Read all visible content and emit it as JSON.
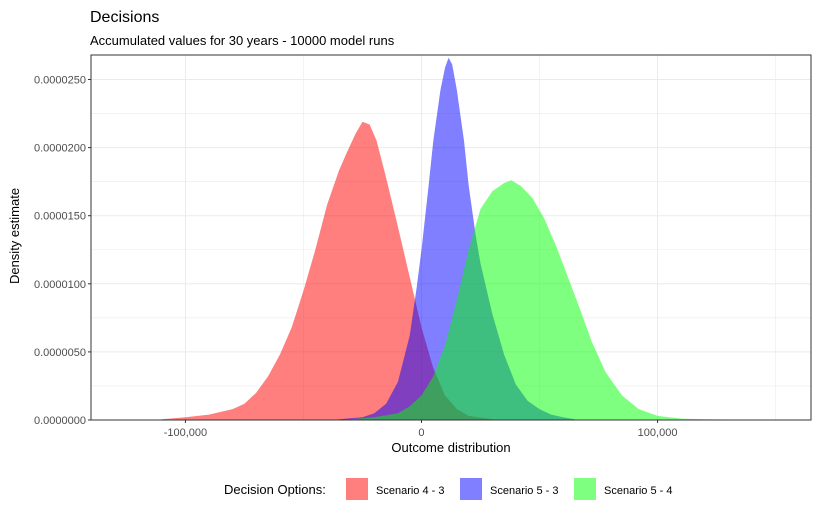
{
  "chart_data": {
    "type": "area",
    "title": "Decisions",
    "subtitle": "Accumulated values for 30 years - 10000 model runs",
    "xlabel": "Outcome distribution",
    "ylabel": "Density estimate",
    "xlim": [
      -140000,
      165000
    ],
    "ylim": [
      0,
      2.68e-05
    ],
    "x_ticks": [
      -100000,
      0,
      100000
    ],
    "x_tick_labels": [
      "-100,000",
      "0",
      "100,000"
    ],
    "y_ticks": [
      0,
      5e-06,
      1e-05,
      1.5e-05,
      2e-05,
      2.5e-05
    ],
    "y_tick_labels": [
      "0.0000000",
      "0.0000050",
      "0.0000100",
      "0.0000150",
      "0.0000200",
      "0.0000250"
    ],
    "grid": true,
    "legend": {
      "title": "Decision Options:",
      "position": "bottom"
    },
    "series": [
      {
        "name": "Scenario 4 - 3",
        "color": "#FF0000",
        "points": [
          [
            -110000,
            5e-08
          ],
          [
            -100000,
            2e-07
          ],
          [
            -90000,
            4e-07
          ],
          [
            -80000,
            8e-07
          ],
          [
            -75000,
            1.2e-06
          ],
          [
            -70000,
            2e-06
          ],
          [
            -65000,
            3.2e-06
          ],
          [
            -60000,
            4.8e-06
          ],
          [
            -55000,
            6.8e-06
          ],
          [
            -50000,
            9.5e-06
          ],
          [
            -45000,
            1.25e-05
          ],
          [
            -40000,
            1.58e-05
          ],
          [
            -35000,
            1.83e-05
          ],
          [
            -32000,
            1.95e-05
          ],
          [
            -28000,
            2.1e-05
          ],
          [
            -25000,
            2.19e-05
          ],
          [
            -22000,
            2.17e-05
          ],
          [
            -19000,
            2.05e-05
          ],
          [
            -15000,
            1.78e-05
          ],
          [
            -10000,
            1.42e-05
          ],
          [
            -5000,
            1.05e-05
          ],
          [
            0,
            6.8e-06
          ],
          [
            5000,
            3.8e-06
          ],
          [
            10000,
            1.8e-06
          ],
          [
            15000,
            8e-07
          ],
          [
            20000,
            3e-07
          ],
          [
            30000,
            5e-08
          ]
        ]
      },
      {
        "name": "Scenario 5 - 3",
        "color": "#0000FF",
        "points": [
          [
            -35000,
            5e-08
          ],
          [
            -25000,
            2e-07
          ],
          [
            -20000,
            5e-07
          ],
          [
            -15000,
            1.2e-06
          ],
          [
            -10000,
            2.8e-06
          ],
          [
            -5000,
            6.2e-06
          ],
          [
            -2000,
            9.8e-06
          ],
          [
            0,
            1.25e-05
          ],
          [
            3000,
            1.72e-05
          ],
          [
            5000,
            2.05e-05
          ],
          [
            8000,
            2.42e-05
          ],
          [
            10000,
            2.59e-05
          ],
          [
            11500,
            2.66e-05
          ],
          [
            13000,
            2.61e-05
          ],
          [
            15000,
            2.42e-05
          ],
          [
            18000,
            2.05e-05
          ],
          [
            20000,
            1.72e-05
          ],
          [
            23000,
            1.35e-05
          ],
          [
            25000,
            1.15e-05
          ],
          [
            30000,
            7.8e-06
          ],
          [
            35000,
            4.8e-06
          ],
          [
            40000,
            2.6e-06
          ],
          [
            45000,
            1.4e-06
          ],
          [
            50000,
            8e-07
          ],
          [
            55000,
            4e-07
          ],
          [
            60000,
            2e-07
          ],
          [
            65000,
            5e-08
          ]
        ]
      },
      {
        "name": "Scenario 5 - 4",
        "color": "#00FF00",
        "points": [
          [
            -30000,
            5e-08
          ],
          [
            -20000,
            2e-07
          ],
          [
            -10000,
            5e-07
          ],
          [
            -5000,
            1e-06
          ],
          [
            0,
            1.8e-06
          ],
          [
            5000,
            3.2e-06
          ],
          [
            10000,
            5.5e-06
          ],
          [
            15000,
            8.8e-06
          ],
          [
            20000,
            1.25e-05
          ],
          [
            25000,
            1.55e-05
          ],
          [
            30000,
            1.68e-05
          ],
          [
            35000,
            1.74e-05
          ],
          [
            38000,
            1.76e-05
          ],
          [
            42000,
            1.72e-05
          ],
          [
            47000,
            1.63e-05
          ],
          [
            52000,
            1.48e-05
          ],
          [
            57000,
            1.28e-05
          ],
          [
            62000,
            1.05e-05
          ],
          [
            67000,
            8.2e-06
          ],
          [
            72000,
            5.8e-06
          ],
          [
            78000,
            3.5e-06
          ],
          [
            85000,
            1.8e-06
          ],
          [
            92000,
            8e-07
          ],
          [
            100000,
            3e-07
          ],
          [
            110000,
            1e-07
          ],
          [
            120000,
            5e-08
          ],
          [
            142000,
            2e-08
          ]
        ]
      }
    ]
  }
}
